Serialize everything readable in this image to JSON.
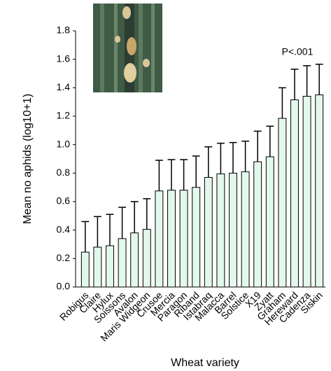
{
  "chart_data": {
    "type": "bar",
    "ylabel": "Mean no aphids (log10+1)",
    "xlabel": "Wheat variety",
    "annotation": "P<.001",
    "categories": [
      "Robigus",
      "Claire",
      "Hylux",
      "Soissons",
      "Avalon",
      "Maris Widgeon",
      "Crusoe",
      "Mercia",
      "Paragon",
      "Riband",
      "Istabraq",
      "Malacca",
      "Barrel",
      "Solstice",
      "X19",
      "Zyatt",
      "Graham",
      "Hereward",
      "Cadenza",
      "Siskin"
    ],
    "values": [
      0.245,
      0.28,
      0.29,
      0.34,
      0.38,
      0.405,
      0.675,
      0.68,
      0.68,
      0.7,
      0.77,
      0.795,
      0.8,
      0.81,
      0.88,
      0.915,
      1.185,
      1.315,
      1.34,
      1.35
    ],
    "errors": [
      0.215,
      0.215,
      0.22,
      0.22,
      0.22,
      0.215,
      0.215,
      0.215,
      0.215,
      0.22,
      0.215,
      0.215,
      0.215,
      0.215,
      0.215,
      0.215,
      0.215,
      0.215,
      0.215,
      0.215
    ],
    "color": "#e2f8ec",
    "ylim": [
      0,
      1.8
    ],
    "yticks": [
      {
        "value": 0,
        "label": "0.0"
      },
      {
        "value": 0.2,
        "label": "0.2"
      },
      {
        "value": 0.4,
        "label": "0.4"
      },
      {
        "value": 0.6,
        "label": "0.6"
      },
      {
        "value": 0.8,
        "label": "0.8"
      },
      {
        "value": 1.0,
        "label": "1.0"
      },
      {
        "value": 1.2,
        "label": "1.2"
      },
      {
        "value": 1.4,
        "label": "1.4"
      },
      {
        "value": 1.6,
        "label": "1.6"
      },
      {
        "value": 1.8,
        "label": "1.8"
      }
    ],
    "grid": false
  }
}
